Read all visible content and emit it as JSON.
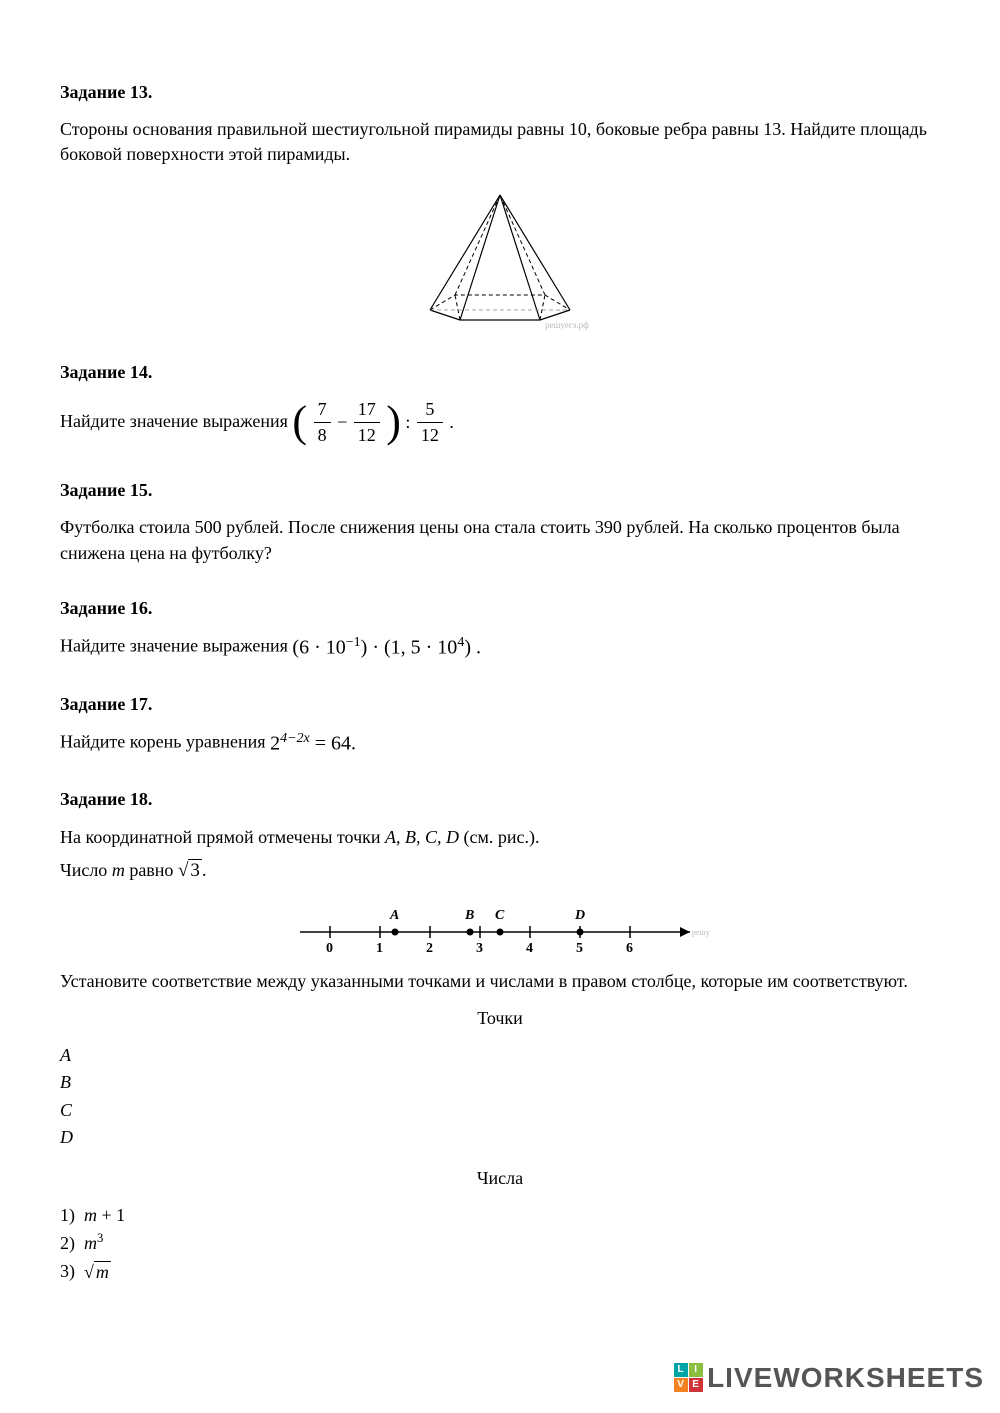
{
  "task13": {
    "title": "Задание 13.",
    "text": "Стороны основания правильной шестиугольной пирамиды равны 10, боковые ребра равны 13. Найдите площадь боковой поверхности этой пирамиды.",
    "figure_caption": "решуегэ.рф"
  },
  "task14": {
    "title": "Задание 14.",
    "prefix": "Найдите значение выражения",
    "frac1_num": "7",
    "frac1_den": "8",
    "frac2_num": "17",
    "frac2_den": "12",
    "frac3_num": "5",
    "frac3_den": "12"
  },
  "task15": {
    "title": "Задание 15.",
    "text": "Футболка стоила 500 рублей. После снижения цены она стала стоить 390 рублей. На сколько процентов была снижена цена на футболку?"
  },
  "task16": {
    "title": "Задание 16.",
    "prefix": "Найдите значение выражения",
    "expr_a": "6 · 10",
    "expr_a_exp": "−1",
    "expr_b": "1, 5 · 10",
    "expr_b_exp": "4"
  },
  "task17": {
    "title": "Задание 17.",
    "prefix": "Найдите корень уравнения",
    "base": "2",
    "exp": "4−2x",
    "rhs": "= 64."
  },
  "task18": {
    "title": "Задание 18.",
    "line1a": "На координатной прямой отмечены точки ",
    "line1b": "A, B, C, D",
    "line1c": " (см. рис.).",
    "line2a": "Число ",
    "line2b": "m",
    "line2c": " равно ",
    "sqrt_val": "3",
    "line3": "Установите соответствие между указанными точками и числами в правом столбце, которые им соответствуют.",
    "heading_points": "Точки",
    "points": [
      "A",
      "B",
      "C",
      "D"
    ],
    "heading_numbers": "Числа",
    "num1_label": "1)",
    "num1_a": "m",
    "num1_b": " + 1",
    "num2_label": "2)",
    "num2_a": "m",
    "num2_exp": "3",
    "num3_label": "3)",
    "num3_rad": "m",
    "numberline": {
      "ticks": [
        "0",
        "1",
        "2",
        "3",
        "4",
        "5",
        "6"
      ],
      "point_labels": [
        "A",
        "B",
        "C",
        "D"
      ],
      "caption": "решуегэ.рф"
    }
  },
  "watermark": {
    "text": "LIVEWORKSHEETS"
  }
}
